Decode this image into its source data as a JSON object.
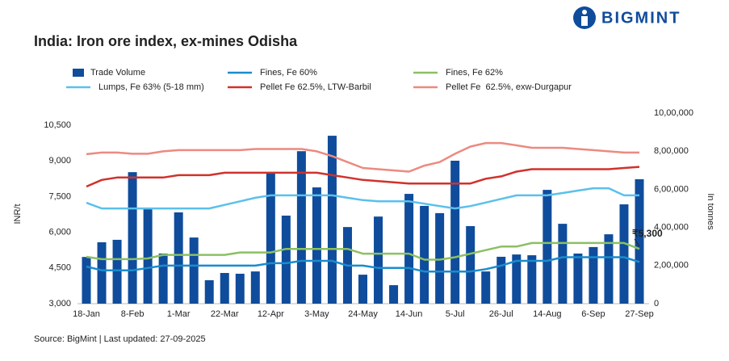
{
  "brand": "BIGMINT",
  "chart_data": {
    "type": "combo",
    "title": "India: Iron ore index, ex-mines Odisha",
    "source": "Source: BigMint | Last updated: 27-09-2025",
    "ylabel": "INR/t",
    "y2label": "In tonnes",
    "annotation": "₹5,300",
    "categories": [
      "18-Jan",
      null,
      null,
      "8-Feb",
      null,
      null,
      "1-Mar",
      null,
      null,
      "22-Mar",
      null,
      null,
      "12-Apr",
      null,
      null,
      "3-May",
      null,
      null,
      "24-May",
      null,
      null,
      "14-Jun",
      null,
      null,
      "5-Jul",
      null,
      null,
      "26-Jul",
      null,
      null,
      "14-Aug",
      null,
      null,
      "6-Sep",
      null,
      null,
      "27-Sep"
    ],
    "ylim": [
      3000,
      10500
    ],
    "yticks": [
      {
        "value": 3000,
        "label": "3,000"
      },
      {
        "value": 4500,
        "label": "4,500"
      },
      {
        "value": 6000,
        "label": "6,000"
      },
      {
        "value": 7500,
        "label": "7,500"
      },
      {
        "value": 9000,
        "label": "9,000"
      },
      {
        "value": 10500,
        "label": "10,500"
      }
    ],
    "y2lim": [
      0,
      1000000
    ],
    "y2ticks": [
      0,
      {
        "value": 200000,
        "label": "2,00,000"
      },
      {
        "value": 400000,
        "label": "4,00,000"
      },
      {
        "value": 600000,
        "label": "6,00,000"
      },
      {
        "value": 800000,
        "label": "8,00,000"
      },
      {
        "value": 1000000,
        "label": "10,00,000"
      }
    ],
    "series": [
      {
        "name": "Trade Volume",
        "type": "bar",
        "axis": "y2",
        "color": "#0f4c9c",
        "values": [
          245000,
          322000,
          335000,
          690000,
          500000,
          263000,
          479000,
          347000,
          123000,
          161000,
          157000,
          169000,
          690000,
          462000,
          800000,
          610000,
          881000,
          402000,
          152000,
          457000,
          97000,
          576000,
          513000,
          475000,
          750000,
          407000,
          169000,
          246000,
          258000,
          254000,
          597000,
          419000,
          263000,
          297000,
          364000,
          521000,
          653000
        ]
      },
      {
        "name": "Fines, Fe 60%",
        "type": "line",
        "color": "#1a8ccc",
        "values": [
          4560,
          4400,
          4400,
          4400,
          4500,
          4600,
          4600,
          4600,
          4600,
          4600,
          4600,
          4600,
          4700,
          4700,
          4800,
          4800,
          4800,
          4600,
          4600,
          4500,
          4500,
          4500,
          4350,
          4350,
          4350,
          4350,
          4450,
          4600,
          4800,
          4800,
          4800,
          4950,
          4950,
          4950,
          4950,
          4950,
          4750
        ]
      },
      {
        "name": "Fines, Fe 62%",
        "type": "line",
        "color": "#8cc063",
        "values": [
          4970,
          4870,
          4870,
          4870,
          4900,
          5050,
          5050,
          5050,
          5050,
          5050,
          5150,
          5150,
          5150,
          5300,
          5300,
          5300,
          5300,
          5300,
          5100,
          5100,
          5100,
          5100,
          4850,
          4850,
          4950,
          5100,
          5250,
          5400,
          5400,
          5550,
          5550,
          5550,
          5550,
          5550,
          5550,
          5550,
          5300
        ]
      },
      {
        "name": "Lumps, Fe 63% (5-18 mm)",
        "type": "line",
        "color": "#5bc0eb",
        "values": [
          7240,
          7000,
          7000,
          7000,
          7000,
          7000,
          7000,
          7000,
          7000,
          7150,
          7300,
          7450,
          7550,
          7550,
          7550,
          7550,
          7550,
          7450,
          7350,
          7300,
          7300,
          7300,
          7200,
          7100,
          7000,
          7100,
          7250,
          7400,
          7550,
          7550,
          7550,
          7650,
          7750,
          7850,
          7850,
          7550,
          7550
        ]
      },
      {
        "name": "Pellet Fe 62.5%, LTW-Barbil",
        "type": "line",
        "color": "#d0322b",
        "values": [
          7920,
          8200,
          8300,
          8300,
          8300,
          8300,
          8400,
          8400,
          8400,
          8500,
          8500,
          8500,
          8500,
          8500,
          8500,
          8500,
          8400,
          8300,
          8200,
          8150,
          8100,
          8050,
          8050,
          8050,
          8050,
          8050,
          8250,
          8350,
          8550,
          8650,
          8650,
          8650,
          8650,
          8650,
          8650,
          8700,
          8750
        ]
      },
      {
        "name": "Pellet Fe  62.5%, exw-Durgapur",
        "type": "line",
        "color": "#ec8a80",
        "values": [
          9280,
          9350,
          9350,
          9300,
          9300,
          9400,
          9450,
          9450,
          9450,
          9450,
          9450,
          9500,
          9500,
          9500,
          9500,
          9400,
          9200,
          8950,
          8700,
          8650,
          8600,
          8550,
          8800,
          8950,
          9300,
          9600,
          9750,
          9750,
          9650,
          9550,
          9550,
          9550,
          9500,
          9450,
          9400,
          9350,
          9350
        ]
      }
    ]
  }
}
